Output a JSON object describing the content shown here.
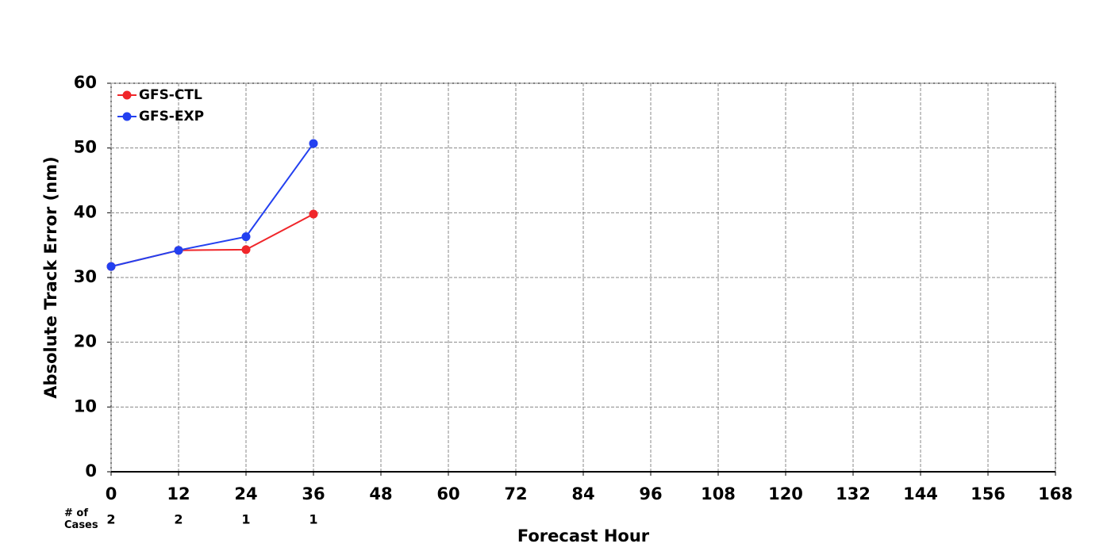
{
  "chart_data": {
    "type": "line",
    "x": [
      0,
      12,
      24,
      36
    ],
    "series": [
      {
        "name": "GFS-CTL",
        "color": "#f0262a",
        "values": [
          31.7,
          34.2,
          34.3,
          39.8
        ]
      },
      {
        "name": "GFS-EXP",
        "color": "#2340f0",
        "values": [
          31.7,
          34.2,
          36.3,
          50.7
        ]
      }
    ],
    "xlabel": "Forecast Hour",
    "ylabel": "Absolute Track Error (nm)",
    "xlim": [
      0,
      168
    ],
    "xticks": [
      0,
      12,
      24,
      36,
      48,
      60,
      72,
      84,
      96,
      108,
      120,
      132,
      144,
      156,
      168
    ],
    "ylim": [
      0,
      60
    ],
    "yticks": [
      0,
      10,
      20,
      30,
      40,
      50,
      60
    ],
    "grid": true,
    "legend": "upper left",
    "cases_label": "# of Cases",
    "cases": [
      2,
      2,
      1,
      1
    ]
  }
}
